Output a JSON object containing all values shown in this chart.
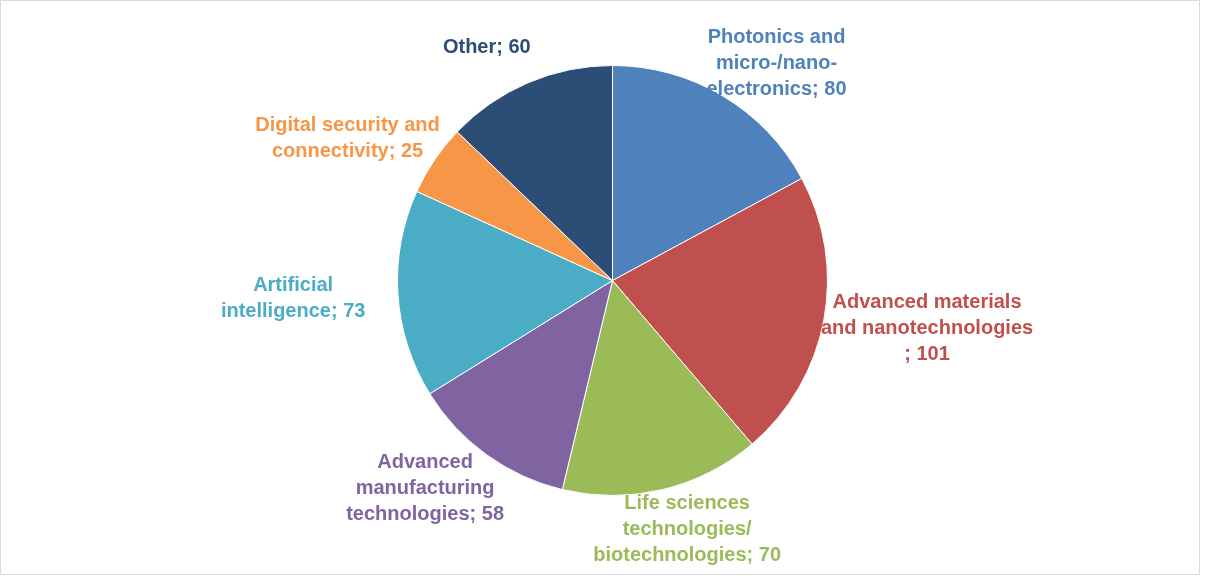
{
  "chart_data": {
    "type": "pie",
    "categories": [
      "Photonics and micro-/nano-electronics",
      "Advanced materials and nanotechnologies",
      "Life sciences technologies/ biotechnologies",
      "Advanced manufacturing technologies",
      "Artificial intelligence",
      "Digital security and connectivity",
      "Other"
    ],
    "values": [
      80,
      101,
      70,
      58,
      73,
      25,
      60
    ],
    "colors": [
      "#4f81bd",
      "#c0504d",
      "#9bbb59",
      "#8064a2",
      "#4bacc6",
      "#f79646",
      "#2c4d75"
    ],
    "value_labels": [
      "; 80",
      " ; 101",
      "; 70",
      "; 58",
      "; 73",
      "; 25",
      "; 60"
    ]
  }
}
